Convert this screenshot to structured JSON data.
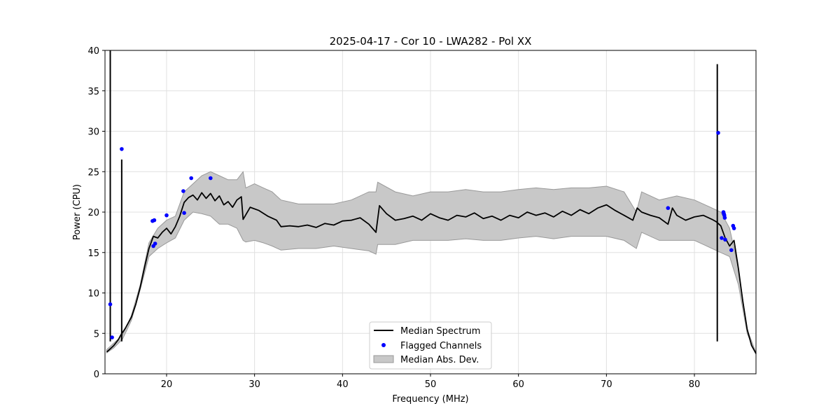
{
  "chart_data": {
    "type": "line",
    "title": "2025-04-17 - Cor 10 - LWA282 - Pol XX",
    "xlabel": "Frequency (MHz)",
    "ylabel": "Power (CPU)",
    "xlim": [
      13,
      87
    ],
    "ylim": [
      0,
      40
    ],
    "xticks": [
      20,
      30,
      40,
      50,
      60,
      70,
      80
    ],
    "yticks": [
      0,
      5,
      10,
      15,
      20,
      25,
      30,
      35,
      40
    ],
    "grid": true,
    "legend_position": "lower-center",
    "legend": [
      "Median Spectrum",
      "Flagged Channels",
      "Median Abs. Dev."
    ],
    "colors": {
      "median": "#000000",
      "flagged": "#0000ff",
      "band": "#c8c8c8",
      "band_edge": "#999999"
    },
    "series": [
      {
        "name": "Median Spectrum",
        "x": [
          13.2,
          13.5,
          14.0,
          14.5,
          14.8,
          15.3,
          16.0,
          16.5,
          17.0,
          17.5,
          18.0,
          18.5,
          19.0,
          19.5,
          20.0,
          20.5,
          21.0,
          21.5,
          22.0,
          22.5,
          23.0,
          23.5,
          24.0,
          24.5,
          25.0,
          25.5,
          26.0,
          26.5,
          27.0,
          27.5,
          28.0,
          28.5,
          28.7,
          29.5,
          30.5,
          31.5,
          32.5,
          33.0,
          34.0,
          35.0,
          36.0,
          37.0,
          38.0,
          39.0,
          40.0,
          41.0,
          42.0,
          43.0,
          43.8,
          44.2,
          45.0,
          46.0,
          47.0,
          48.0,
          49.0,
          50.0,
          51.0,
          52.0,
          53.0,
          54.0,
          55.0,
          56.0,
          57.0,
          58.0,
          59.0,
          60.0,
          61.0,
          62.0,
          63.0,
          64.0,
          65.0,
          66.0,
          67.0,
          68.0,
          69.0,
          70.0,
          71.0,
          72.0,
          73.0,
          73.5,
          74.0,
          75.0,
          76.0,
          77.0,
          77.5,
          78.0,
          79.0,
          80.0,
          81.0,
          82.0,
          82.5,
          83.0,
          83.5,
          84.0,
          84.5,
          85.0,
          85.5,
          86.0,
          86.5,
          87.0
        ],
        "values": [
          2.7,
          3.0,
          3.5,
          4.2,
          4.8,
          5.6,
          7.0,
          8.6,
          10.7,
          13.2,
          15.5,
          17.0,
          16.8,
          17.5,
          18.0,
          17.3,
          18.2,
          19.5,
          21.2,
          21.8,
          22.1,
          21.5,
          22.4,
          21.7,
          22.3,
          21.4,
          22.0,
          20.9,
          21.3,
          20.6,
          21.5,
          21.9,
          19.1,
          20.6,
          20.2,
          19.5,
          19.0,
          18.2,
          18.3,
          18.2,
          18.4,
          18.1,
          18.6,
          18.4,
          18.9,
          19.0,
          19.3,
          18.5,
          17.5,
          20.8,
          19.8,
          19.0,
          19.2,
          19.5,
          19.0,
          19.8,
          19.3,
          19.0,
          19.6,
          19.4,
          19.9,
          19.2,
          19.5,
          19.0,
          19.6,
          19.3,
          20.0,
          19.6,
          19.9,
          19.4,
          20.1,
          19.6,
          20.3,
          19.8,
          20.5,
          20.9,
          20.2,
          19.6,
          19.0,
          20.5,
          20.0,
          19.6,
          19.3,
          18.5,
          20.5,
          19.6,
          19.0,
          19.4,
          19.6,
          19.1,
          18.8,
          18.3,
          16.8,
          15.8,
          16.5,
          13.0,
          9.0,
          5.5,
          3.5,
          2.5
        ],
        "spikes": [
          {
            "x": 13.6,
            "value": 40
          },
          {
            "x": 14.9,
            "value": 26.5
          },
          {
            "x": 82.6,
            "value": 38.3
          }
        ]
      },
      {
        "name": "Median Abs. Dev.",
        "x": [
          13.2,
          14.0,
          15.0,
          16.0,
          17.0,
          18.0,
          19.0,
          20.0,
          21.0,
          22.0,
          23.0,
          24.0,
          25.0,
          26.0,
          27.0,
          28.0,
          28.7,
          29.0,
          30.0,
          31.0,
          32.0,
          33.0,
          35.0,
          37.0,
          39.0,
          41.0,
          43.0,
          43.8,
          44.0,
          46.0,
          48.0,
          50.0,
          52.0,
          54.0,
          56.0,
          58.0,
          60.0,
          62.0,
          64.0,
          66.0,
          68.0,
          70.0,
          72.0,
          73.4,
          74.0,
          76.0,
          78.0,
          80.0,
          81.0,
          82.0,
          83.0,
          84.0,
          85.0,
          86.0,
          87.0
        ],
        "upper": [
          3.0,
          3.8,
          4.8,
          7.2,
          11.0,
          16.2,
          18.0,
          19.0,
          19.5,
          22.5,
          23.5,
          24.5,
          25.0,
          24.5,
          24.0,
          24.0,
          25.0,
          23.0,
          23.5,
          23.0,
          22.5,
          21.5,
          21.0,
          21.0,
          21.0,
          21.5,
          22.5,
          22.5,
          23.7,
          22.5,
          22.0,
          22.5,
          22.5,
          22.8,
          22.5,
          22.5,
          22.8,
          23.0,
          22.8,
          23.0,
          23.0,
          23.2,
          22.5,
          20.0,
          22.5,
          21.5,
          22.0,
          21.5,
          21.0,
          20.5,
          20.0,
          18.0,
          13.0,
          5.5,
          2.6
        ],
        "lower": [
          2.6,
          3.2,
          4.3,
          6.6,
          10.4,
          14.5,
          15.5,
          16.2,
          16.8,
          19.0,
          20.0,
          19.8,
          19.5,
          18.5,
          18.5,
          18.0,
          16.5,
          16.3,
          16.5,
          16.2,
          15.8,
          15.3,
          15.5,
          15.5,
          15.8,
          15.5,
          15.2,
          14.8,
          16.0,
          16.0,
          16.5,
          16.5,
          16.5,
          16.7,
          16.5,
          16.5,
          16.8,
          17.0,
          16.7,
          17.0,
          17.0,
          17.0,
          16.5,
          15.5,
          17.5,
          16.5,
          16.5,
          16.5,
          16.0,
          15.5,
          15.0,
          14.5,
          11.0,
          5.0,
          2.4
        ]
      }
    ],
    "flagged_channels": {
      "x": [
        13.6,
        13.8,
        14.9,
        18.4,
        18.6,
        18.5,
        18.7,
        20.0,
        21.9,
        22.0,
        22.8,
        25.0,
        77.0,
        82.7,
        83.1,
        83.3,
        83.35,
        83.4,
        83.45,
        83.5,
        84.2,
        84.4,
        84.5
      ],
      "values": [
        8.6,
        4.5,
        27.8,
        18.9,
        19.0,
        15.8,
        16.1,
        19.6,
        22.6,
        19.9,
        24.2,
        24.2,
        20.5,
        29.8,
        16.8,
        20.0,
        19.8,
        19.6,
        19.3,
        16.6,
        15.3,
        18.3,
        18.0
      ]
    }
  }
}
